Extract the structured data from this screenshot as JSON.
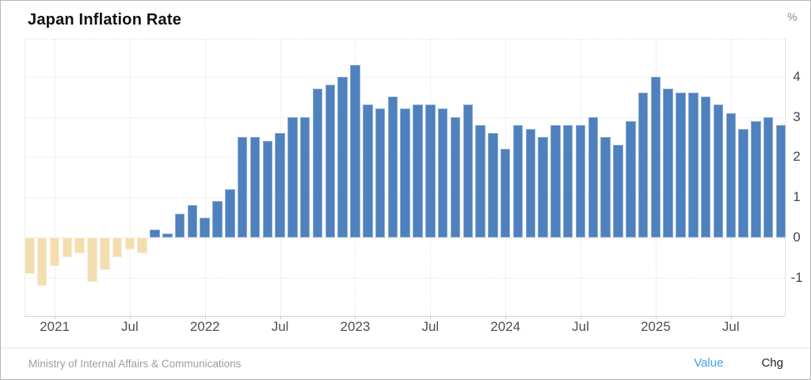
{
  "header": {
    "title": "Japan Inflation Rate",
    "unit_label": "%"
  },
  "footer": {
    "source": "Ministry of Internal Affairs & Communications",
    "toggles": [
      {
        "label": "Value",
        "active": true
      },
      {
        "label": "Chg",
        "active": false
      }
    ]
  },
  "colors": {
    "positive_bar": "#4e81bd",
    "negative_bar": "#f3deb1",
    "value_link": "#3fa0ea",
    "chg_link": "#1e1e1e",
    "grid": "#e3e3e3",
    "axis_text": "#4d4f52",
    "source_text": "#9e9e9e"
  },
  "chart_data": {
    "type": "bar",
    "title": "Japan Inflation Rate",
    "ylabel": "%",
    "xlabel": "",
    "grid": true,
    "legend": "none",
    "ylim": [
      -1.95,
      4.95
    ],
    "yticks": [
      -1,
      0,
      1,
      2,
      3,
      4
    ],
    "xtick_labels": [
      "2021",
      "Jul",
      "2022",
      "Jul",
      "2023",
      "Jul",
      "2024",
      "Jul",
      "2025",
      "Jul"
    ],
    "source": "Ministry of Internal Affairs & Communications",
    "months": [
      "2020-11",
      "2020-12",
      "2021-01",
      "2021-02",
      "2021-03",
      "2021-04",
      "2021-05",
      "2021-06",
      "2021-07",
      "2021-08",
      "2021-09",
      "2021-10",
      "2021-11",
      "2021-12",
      "2022-01",
      "2022-02",
      "2022-03",
      "2022-04",
      "2022-05",
      "2022-06",
      "2022-07",
      "2022-08",
      "2022-09",
      "2022-10",
      "2022-11",
      "2022-12",
      "2023-01",
      "2023-02",
      "2023-03",
      "2023-04",
      "2023-05",
      "2023-06",
      "2023-07",
      "2023-08",
      "2023-09",
      "2023-10",
      "2023-11",
      "2023-12",
      "2024-01",
      "2024-02",
      "2024-03",
      "2024-04",
      "2024-05",
      "2024-06",
      "2024-07",
      "2024-08",
      "2024-09",
      "2024-10",
      "2024-11",
      "2024-12",
      "2025-01",
      "2025-02",
      "2025-03",
      "2025-04",
      "2025-05",
      "2025-06",
      "2025-07",
      "2025-08",
      "2025-09",
      "2025-10",
      "2025-11"
    ],
    "values": [
      -0.9,
      -1.2,
      -0.7,
      -0.5,
      -0.4,
      -1.1,
      -0.8,
      -0.5,
      -0.3,
      -0.4,
      0.2,
      0.1,
      0.6,
      0.8,
      0.5,
      0.9,
      1.2,
      2.5,
      2.5,
      2.4,
      2.6,
      3.0,
      3.0,
      3.7,
      3.8,
      4.0,
      4.3,
      3.3,
      3.2,
      3.5,
      3.2,
      3.3,
      3.3,
      3.2,
      3.0,
      3.3,
      2.8,
      2.6,
      2.2,
      2.8,
      2.7,
      2.5,
      2.8,
      2.8,
      2.8,
      3.0,
      2.5,
      2.3,
      2.9,
      3.6,
      4.0,
      3.7,
      3.6,
      3.6,
      3.5,
      3.3,
      3.1,
      2.7,
      2.9,
      3.0,
      2.8
    ]
  }
}
